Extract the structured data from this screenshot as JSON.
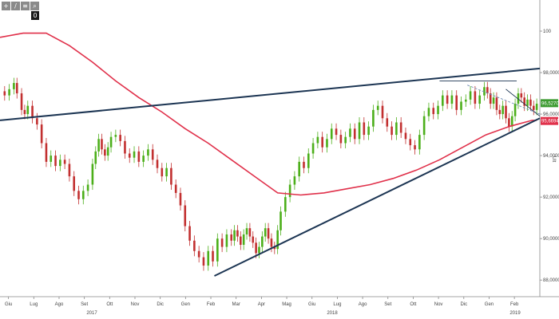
{
  "toolbar": {
    "buttons": [
      {
        "icon": "plus-icon",
        "glyph": "+"
      },
      {
        "icon": "pencil-icon",
        "glyph": "/"
      },
      {
        "icon": "text-icon",
        "glyph": "≡"
      },
      {
        "icon": "zoom-icon",
        "glyph": "⌕"
      }
    ],
    "badge": "0"
  },
  "colors": {
    "candle_up": "#4caf1a",
    "candle_down": "#c23030",
    "moving_average": "#e0304a",
    "trendline": "#1c3553",
    "dashed_line": "#6d8cb3",
    "last_price_tag": "#3c9a30",
    "ma_tag": "#e0304a"
  },
  "chart_data": {
    "type": "line",
    "y_ticks": [
      "88,0000",
      "90,0000",
      "92,0000",
      "94,0000",
      "96,0000",
      "98,0000",
      "100"
    ],
    "ylim": [
      87.2,
      101.5
    ],
    "x_ticks": [
      "Giu",
      "Lug",
      "Ago",
      "Set",
      "Ott",
      "Nov",
      "Dic",
      "Gen",
      "Feb",
      "Mar",
      "Apr",
      "Mag",
      "Giu",
      "Lug",
      "Ago",
      "Set",
      "Ott",
      "Nov",
      "Dic",
      "Gen",
      "Feb"
    ],
    "years": [
      "2017",
      "2018",
      "2019"
    ],
    "side_label": "Ult",
    "last_price_label": "96,5270",
    "ma_label": "95,6694",
    "price_series": {
      "name": "price",
      "x": [
        0,
        3,
        6,
        9,
        11,
        14,
        16,
        18,
        21,
        24,
        27,
        30,
        33,
        36,
        39,
        42,
        45,
        48,
        51,
        54,
        57,
        60,
        62,
        64,
        66,
        68,
        70,
        72,
        75,
        78,
        81,
        84,
        87,
        90,
        93,
        96,
        99,
        102,
        105,
        108,
        111,
        114,
        117,
        120,
        123,
        126,
        129,
        132,
        135,
        138,
        141,
        144,
        147,
        150,
        152,
        154,
        156,
        158,
        160,
        162,
        164,
        166,
        168,
        170,
        172,
        174,
        176,
        178,
        180,
        182,
        185,
        188,
        191,
        194,
        197,
        200,
        203,
        206,
        209,
        212,
        215,
        218,
        221,
        224,
        227,
        230,
        233,
        236,
        239,
        242,
        245,
        248,
        251,
        254,
        257,
        260,
        263,
        266,
        269,
        272,
        275,
        278,
        281,
        284,
        287,
        290,
        293,
        296,
        299,
        302,
        305,
        308,
        311,
        314,
        316,
        318,
        320,
        322,
        324,
        326,
        328,
        330,
        332,
        334,
        336,
        338,
        340,
        342,
        344,
        346,
        348
      ],
      "values": [
        97.1,
        96.9,
        97.2,
        97.5,
        97.0,
        96.2,
        96.0,
        96.4,
        95.8,
        95.5,
        94.6,
        93.7,
        94.0,
        93.5,
        93.8,
        93.6,
        93.0,
        92.3,
        91.9,
        92.3,
        92.6,
        93.6,
        94.2,
        94.8,
        94.3,
        94.0,
        94.4,
        94.9,
        95.0,
        94.7,
        94.1,
        93.9,
        94.2,
        93.7,
        94.0,
        94.3,
        93.8,
        93.4,
        93.0,
        93.4,
        92.6,
        92.2,
        91.6,
        90.6,
        89.9,
        89.4,
        89.1,
        88.7,
        89.4,
        88.9,
        90.0,
        89.6,
        90.2,
        89.9,
        90.4,
        90.1,
        89.7,
        90.2,
        90.5,
        90.1,
        89.8,
        89.3,
        89.6,
        90.1,
        90.5,
        90.0,
        89.6,
        89.5,
        90.4,
        91.3,
        92.0,
        92.6,
        93.0,
        93.7,
        93.4,
        94.1,
        94.6,
        94.9,
        94.4,
        94.8,
        95.3,
        95.0,
        94.6,
        94.9,
        95.3,
        94.8,
        95.6,
        95.0,
        95.4,
        96.2,
        96.4,
        95.8,
        95.4,
        95.0,
        95.6,
        95.1,
        94.8,
        94.5,
        94.3,
        95.0,
        95.9,
        96.3,
        96.0,
        96.4,
        96.9,
        96.5,
        96.9,
        96.2,
        96.6,
        96.7,
        97.1,
        96.5,
        96.9,
        97.3,
        97.0,
        96.5,
        96.8,
        96.2,
        96.0,
        96.4,
        95.8,
        95.4,
        95.9,
        96.5,
        97.0,
        96.8,
        96.4,
        96.7,
        96.4,
        96.2,
        96.5
      ]
    },
    "moving_average": {
      "name": "moving average",
      "x": [
        0,
        15,
        30,
        45,
        60,
        75,
        90,
        105,
        120,
        135,
        150,
        165,
        180,
        195,
        210,
        225,
        240,
        255,
        270,
        285,
        300,
        315,
        330,
        345,
        348
      ],
      "values": [
        99.7,
        99.9,
        99.9,
        99.3,
        98.5,
        97.6,
        96.8,
        96.1,
        95.3,
        94.6,
        93.8,
        93.0,
        92.2,
        92.1,
        92.2,
        92.4,
        92.6,
        92.9,
        93.3,
        93.8,
        94.4,
        95.0,
        95.4,
        95.7,
        95.7
      ]
    },
    "trendlines": [
      {
        "name": "resistance",
        "x": [
          0,
          350
        ],
        "values": [
          95.7,
          98.2
        ],
        "style": "solid"
      },
      {
        "name": "support",
        "x": [
          139,
          350
        ],
        "values": [
          88.2,
          95.8
        ],
        "style": "solid"
      },
      {
        "name": "horizontal",
        "x": [
          285,
          335
        ],
        "values": [
          97.6,
          97.6
        ],
        "style": "solid"
      },
      {
        "name": "descending",
        "x": [
          303,
          350
        ],
        "values": [
          97.4,
          96.0
        ],
        "style": "dashed"
      },
      {
        "name": "flag-upper",
        "x": [
          328,
          350
        ],
        "values": [
          97.2,
          95.9
        ],
        "style": "solid"
      }
    ]
  }
}
